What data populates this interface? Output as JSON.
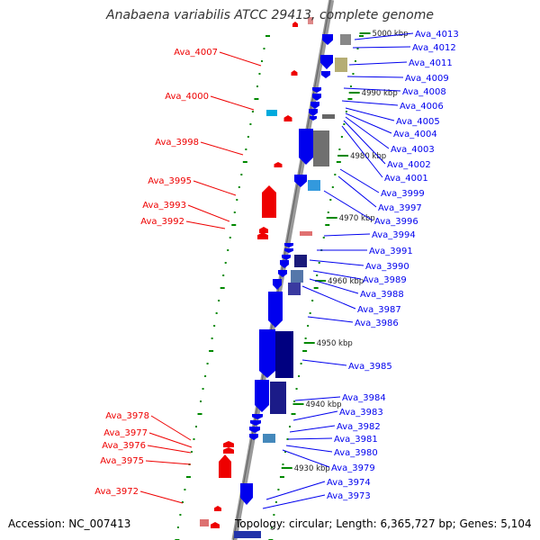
{
  "title": "Anabaena variabilis ATCC 29413, complete genome",
  "footer": {
    "accession": "Accession: NC_007413",
    "summary": "Topology: circular; Length: 6,365,727 bp; Genes: 5,104"
  },
  "colors": {
    "reverse_strand": "#ee0000",
    "forward_strand": "#0000ee",
    "backbone": "#888888",
    "tick": "#008800",
    "background": "#ffffff"
  },
  "kbp_markers": [
    {
      "label": "5000 kbp"
    },
    {
      "label": "4990 kbp"
    },
    {
      "label": "4980 kbp"
    },
    {
      "label": "4970 kbp"
    },
    {
      "label": "4960 kbp"
    },
    {
      "label": "4950 kbp"
    },
    {
      "label": "4940 kbp"
    },
    {
      "label": "4930 kbp"
    }
  ],
  "left_genes": [
    {
      "label": "Ava_4007"
    },
    {
      "label": "Ava_4000"
    },
    {
      "label": "Ava_3998"
    },
    {
      "label": "Ava_3995"
    },
    {
      "label": "Ava_3993"
    },
    {
      "label": "Ava_3992"
    },
    {
      "label": "Ava_3978"
    },
    {
      "label": "Ava_3977"
    },
    {
      "label": "Ava_3976"
    },
    {
      "label": "Ava_3975"
    },
    {
      "label": "Ava_3972"
    }
  ],
  "right_genes": [
    {
      "label": "Ava_4013"
    },
    {
      "label": "Ava_4012"
    },
    {
      "label": "Ava_4011"
    },
    {
      "label": "Ava_4009"
    },
    {
      "label": "Ava_4008"
    },
    {
      "label": "Ava_4006"
    },
    {
      "label": "Ava_4005"
    },
    {
      "label": "Ava_4004"
    },
    {
      "label": "Ava_4003"
    },
    {
      "label": "Ava_4002"
    },
    {
      "label": "Ava_4001"
    },
    {
      "label": "Ava_3999"
    },
    {
      "label": "Ava_3997"
    },
    {
      "label": "Ava_3996"
    },
    {
      "label": "Ava_3994"
    },
    {
      "label": "Ava_3991"
    },
    {
      "label": "Ava_3990"
    },
    {
      "label": "Ava_3989"
    },
    {
      "label": "Ava_3988"
    },
    {
      "label": "Ava_3987"
    },
    {
      "label": "Ava_3986"
    },
    {
      "label": "Ava_3985"
    },
    {
      "label": "Ava_3984"
    },
    {
      "label": "Ava_3983"
    },
    {
      "label": "Ava_3982"
    },
    {
      "label": "Ava_3981"
    },
    {
      "label": "Ava_3980"
    },
    {
      "label": "Ava_3979"
    },
    {
      "label": "Ava_3974"
    },
    {
      "label": "Ava_3973"
    }
  ]
}
